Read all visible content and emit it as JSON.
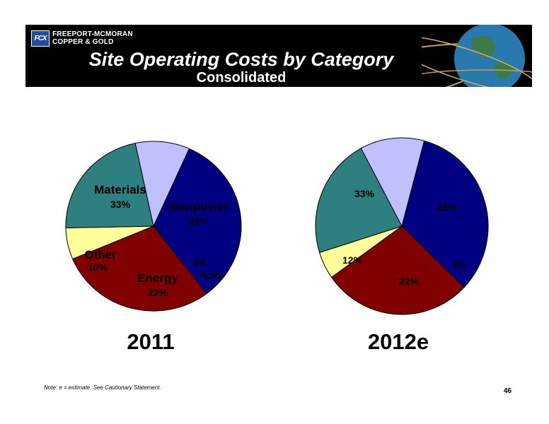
{
  "header": {
    "company_line1": "FREEPORT-MCMORAN",
    "company_line2": "COPPER & GOLD",
    "logo_mark": "FCX",
    "title": "Site Operating Costs by Category",
    "subtitle": "Consolidated"
  },
  "colors": {
    "materials": "#000080",
    "manpower": "#800000",
    "acid": "#ffff99",
    "energy": "#2e8080",
    "other": "#c0c0ff",
    "banner": "#000000"
  },
  "chart_data": [
    {
      "type": "pie",
      "title": "2011",
      "slices": [
        {
          "name": "Materials",
          "value": 33,
          "label": "33%"
        },
        {
          "name": "Manpower",
          "value": 29,
          "label": "29%"
        },
        {
          "name": "Acid",
          "value": 6,
          "label": "6%"
        },
        {
          "name": "Energy",
          "value": 22,
          "label": "22%"
        },
        {
          "name": "Other",
          "value": 10,
          "label": "10%"
        }
      ]
    },
    {
      "type": "pie",
      "title": "2012e",
      "slices": [
        {
          "name": "",
          "value": 33,
          "label": "33%"
        },
        {
          "name": "",
          "value": 28,
          "label": "28%"
        },
        {
          "name": "",
          "value": 5,
          "label": "5%"
        },
        {
          "name": "",
          "value": 22,
          "label": "22%"
        },
        {
          "name": "",
          "value": 12,
          "label": "12%"
        }
      ]
    }
  ],
  "footer": {
    "note": "Note: e = estimate. See Cautionary Statement.",
    "page_number": "46"
  }
}
